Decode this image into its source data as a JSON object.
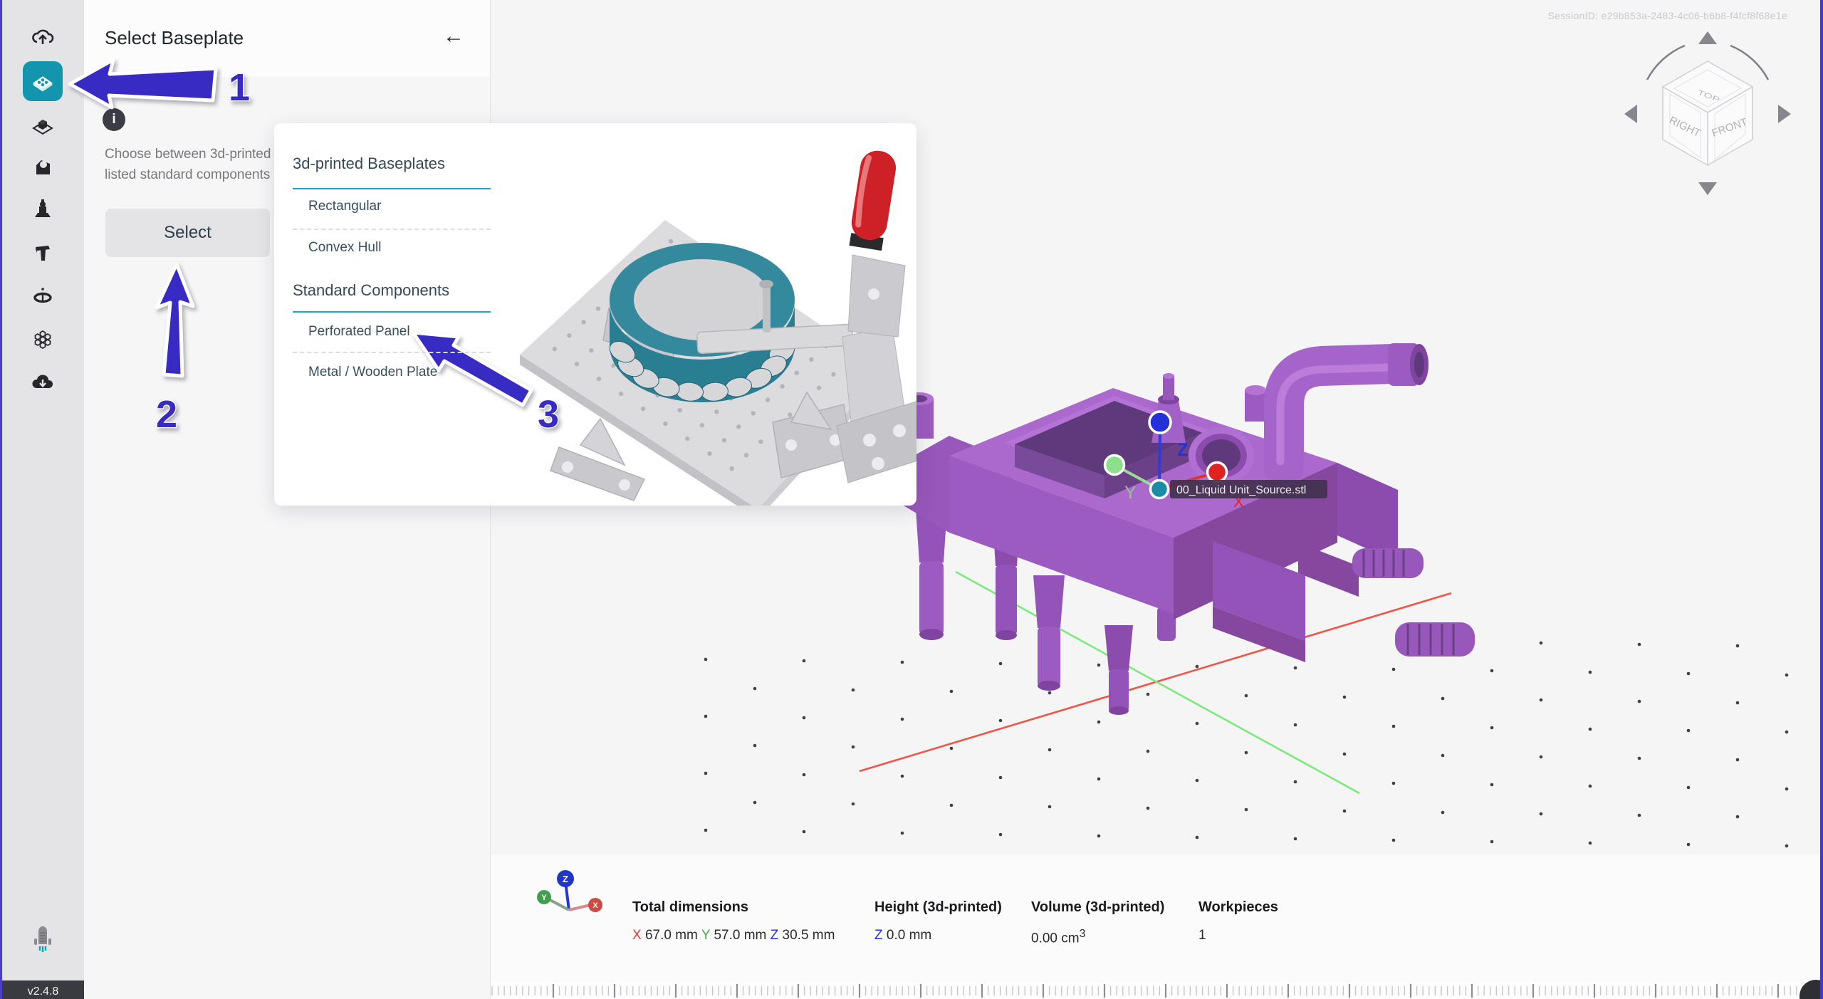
{
  "app": {
    "session_id": "SessionID: e29b853a-2483-4c06-b6b8-f4fcf8f68e1e",
    "version": "v2.4.8"
  },
  "panel": {
    "title": "Select Baseplate",
    "back": "←",
    "info": "i",
    "description_line1": "Choose between 3d-printed",
    "description_line2": "listed standard components",
    "select_button": "Select"
  },
  "popup": {
    "sections": [
      {
        "title": "3d-printed Baseplates",
        "items": [
          "Rectangular",
          "Convex Hull"
        ]
      },
      {
        "title": "Standard Components",
        "items": [
          "Perforated Panel",
          "Metal / Wooden Plate"
        ]
      }
    ]
  },
  "annotations": {
    "one": "1",
    "two": "2",
    "three": "3"
  },
  "viewport": {
    "part_label": "00_Liquid Unit_Source.stl",
    "gizmo": {
      "x": "X",
      "y": "Y",
      "z": "Z"
    },
    "cube": {
      "top": "TOP",
      "right": "RIGHT",
      "front": "FRONT"
    }
  },
  "statsbar": {
    "total": {
      "label": "Total dimensions",
      "x_letter": "X",
      "x_value": "67.0 mm",
      "y_letter": "Y",
      "y_value": "57.0 mm",
      "z_letter": "Z",
      "z_value": "30.5 mm"
    },
    "height": {
      "label": "Height (3d-printed)",
      "z_letter": "Z",
      "value": "0.0 mm"
    },
    "volume": {
      "label": "Volume (3d-printed)",
      "value": "0.00 cm",
      "exp": "3"
    },
    "workpieces": {
      "label": "Workpieces",
      "value": "1"
    }
  },
  "colors": {
    "accent_teal": "#1295ad",
    "annotation_blue": "#372bc4",
    "axis_x": "#e23a2e",
    "axis_y": "#3fae4a",
    "axis_z": "#2038e0",
    "part_purple": "#a263c8"
  }
}
